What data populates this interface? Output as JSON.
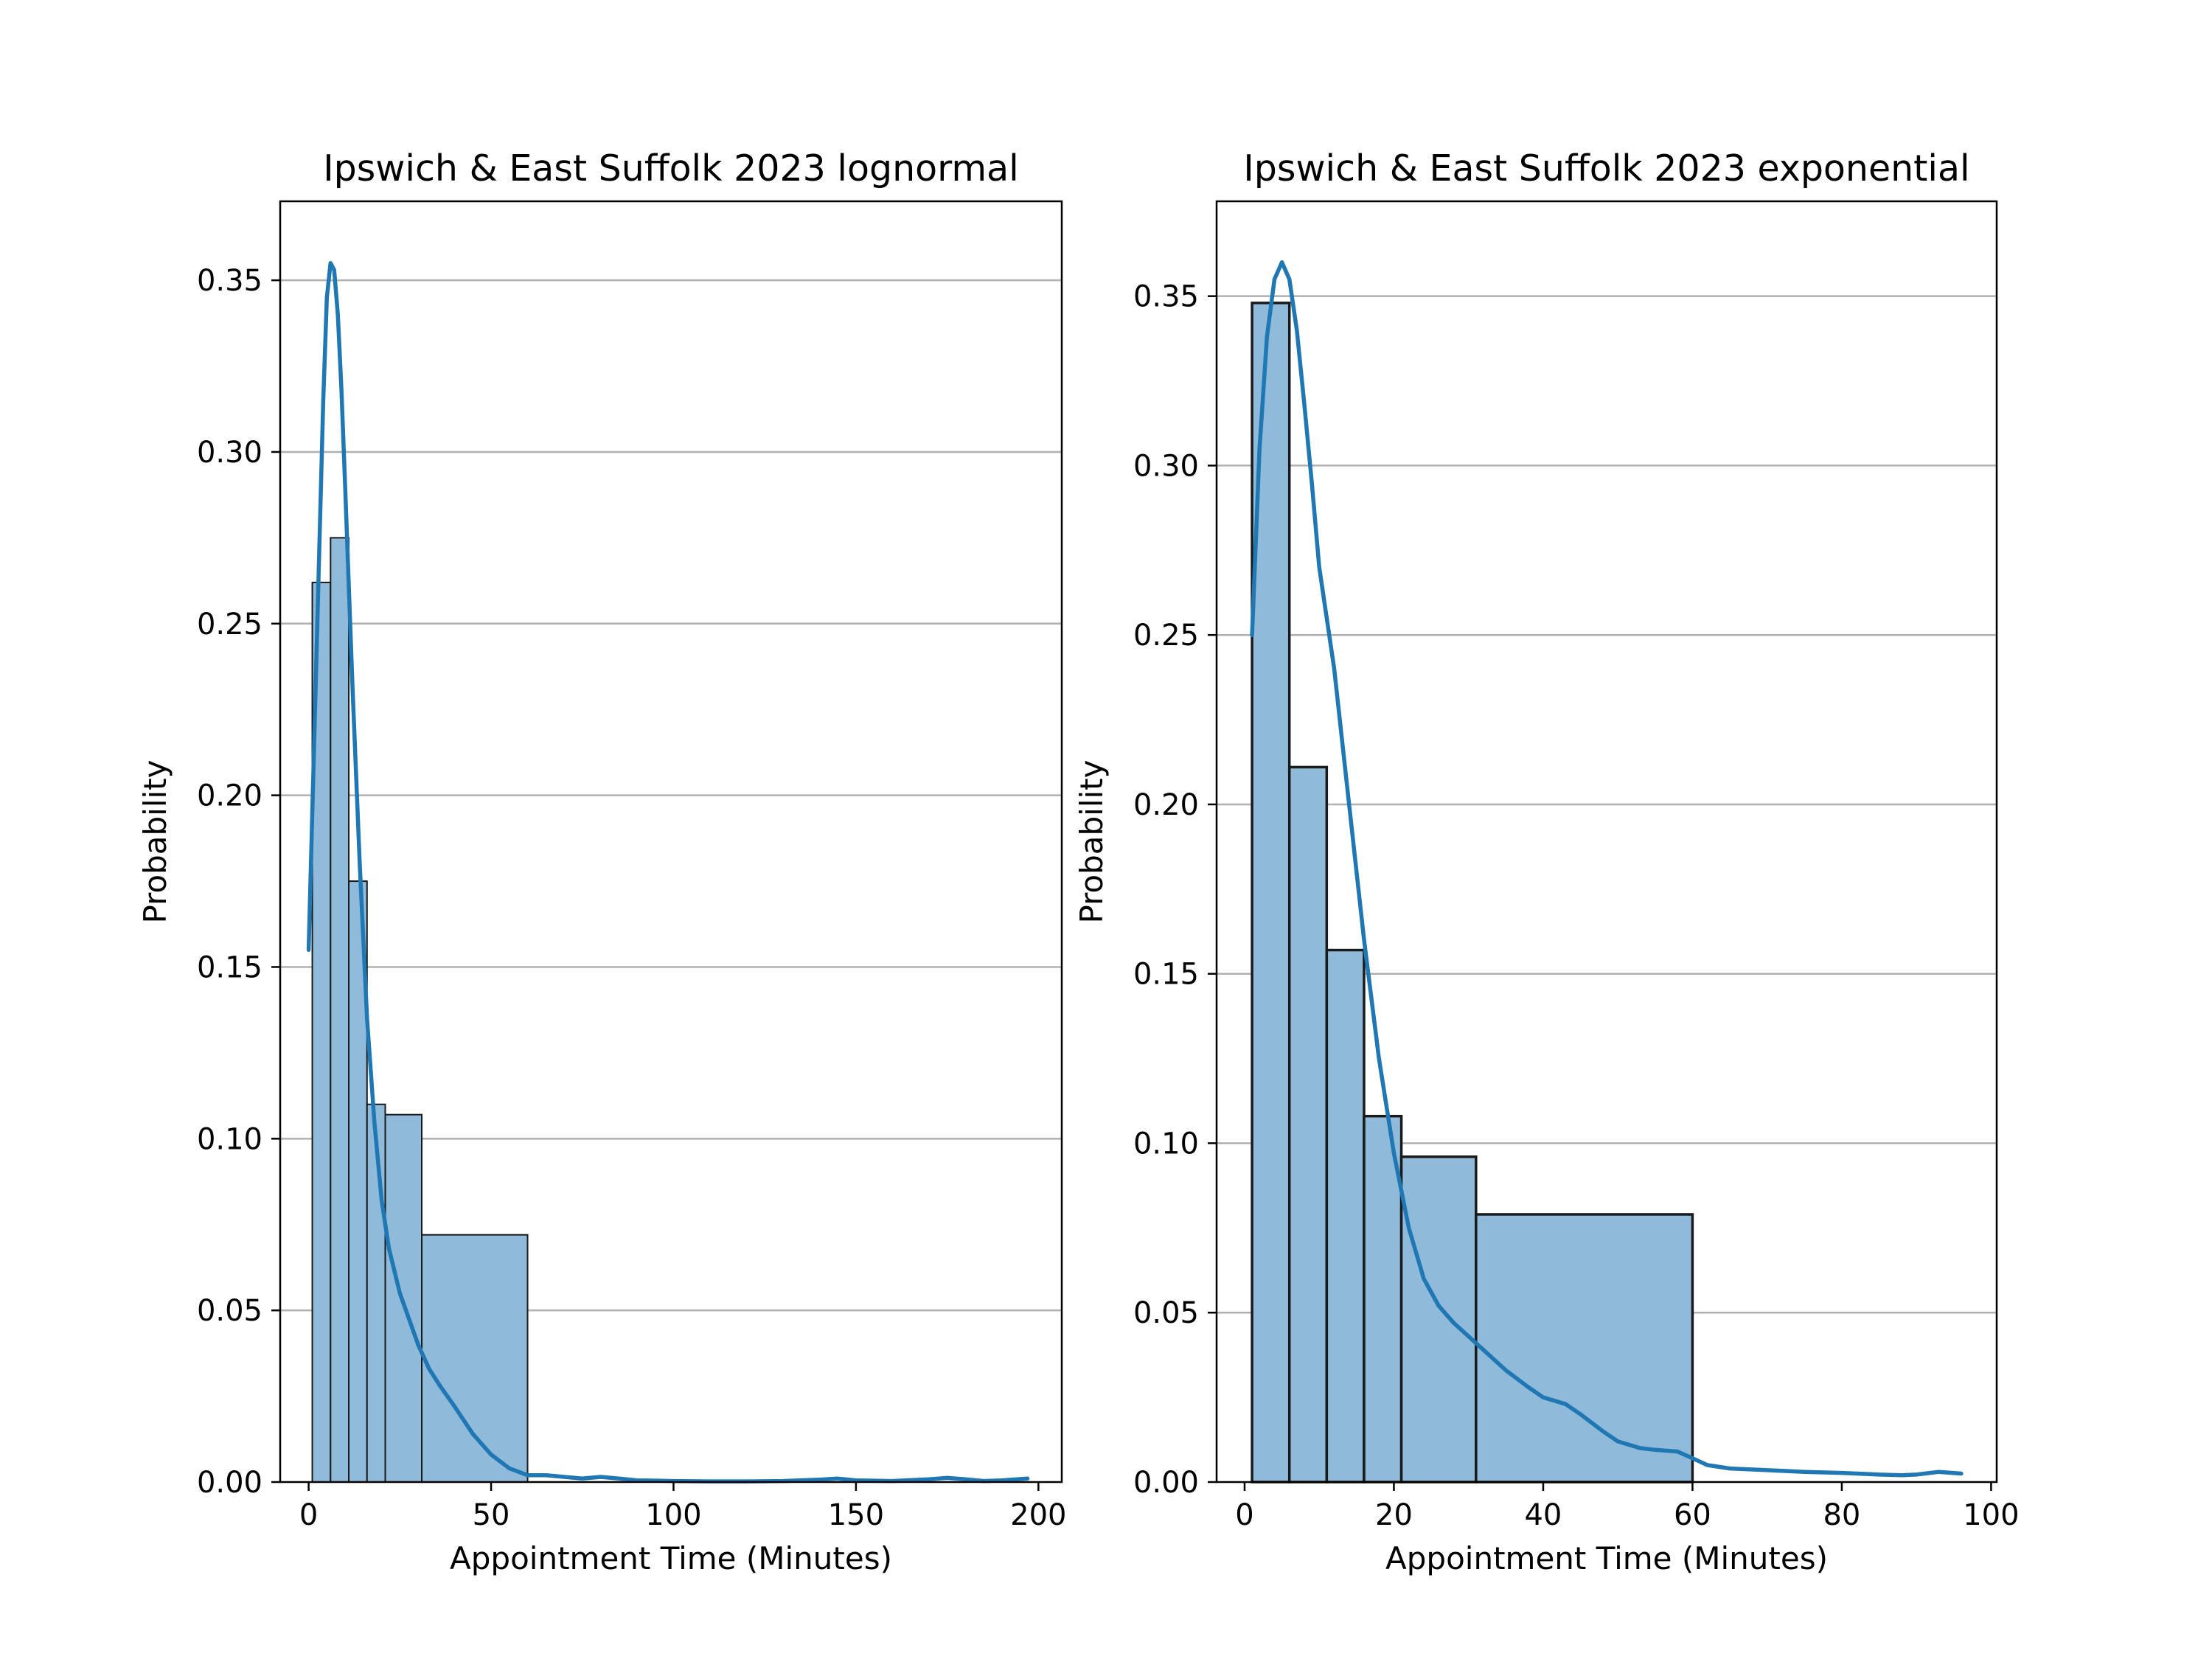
{
  "chart_data": [
    {
      "type": "bar",
      "title": "Ipswich & East Suffolk 2023 lognormal",
      "xlabel": "Appointment Time (Minutes)",
      "ylabel": "Probability",
      "xlim": [
        -7.8,
        206.4
      ],
      "ylim": [
        0,
        0.373
      ],
      "xticks": [
        "0",
        "50",
        "100",
        "150",
        "200"
      ],
      "yticks": [
        "0.00",
        "0.05",
        "0.10",
        "0.15",
        "0.20",
        "0.25",
        "0.30",
        "0.35"
      ],
      "grid": "y",
      "legend": "none",
      "bar_color": "#8fbad9",
      "line_color": "#1f77b4",
      "bins": [
        {
          "x0": 1,
          "x1": 6,
          "value": 0.262
        },
        {
          "x0": 6,
          "x1": 11,
          "value": 0.275
        },
        {
          "x0": 11,
          "x1": 16,
          "value": 0.175
        },
        {
          "x0": 16,
          "x1": 21,
          "value": 0.11
        },
        {
          "x0": 21,
          "x1": 31,
          "value": 0.107
        },
        {
          "x0": 31,
          "x1": 60,
          "value": 0.072
        }
      ],
      "kde": {
        "x": [
          0,
          2,
          4,
          5,
          6,
          7,
          8,
          9,
          10,
          12,
          14,
          16,
          18,
          20,
          22,
          25,
          28,
          30,
          33,
          36,
          40,
          45,
          50,
          55,
          60,
          65,
          70,
          75,
          80,
          85,
          90,
          100,
          110,
          120,
          130,
          140,
          145,
          150,
          160,
          170,
          175,
          180,
          185,
          190,
          197
        ],
        "y": [
          0.155,
          0.235,
          0.315,
          0.345,
          0.355,
          0.353,
          0.34,
          0.318,
          0.29,
          0.232,
          0.18,
          0.135,
          0.105,
          0.082,
          0.068,
          0.055,
          0.046,
          0.04,
          0.033,
          0.028,
          0.022,
          0.014,
          0.008,
          0.004,
          0.002,
          0.002,
          0.0015,
          0.001,
          0.0015,
          0.001,
          0.0005,
          0.0003,
          0.0002,
          0.0002,
          0.0003,
          0.0007,
          0.001,
          0.0005,
          0.0003,
          0.0008,
          0.0012,
          0.0008,
          0.0003,
          0.0005,
          0.001
        ]
      }
    },
    {
      "type": "bar",
      "title": "Ipswich & East Suffolk 2023 exponential",
      "xlabel": "Appointment Time (Minutes)",
      "ylabel": "Probability",
      "xlim": [
        -3.75,
        100.75
      ],
      "ylim": [
        0,
        0.378
      ],
      "xticks": [
        "0",
        "20",
        "40",
        "60",
        "80",
        "100"
      ],
      "yticks": [
        "0.00",
        "0.05",
        "0.10",
        "0.15",
        "0.20",
        "0.25",
        "0.30",
        "0.35"
      ],
      "grid": "y",
      "legend": "none",
      "bar_color": "#8fbad9",
      "line_color": "#1f77b4",
      "bins": [
        {
          "x0": 1,
          "x1": 6,
          "value": 0.348
        },
        {
          "x0": 6,
          "x1": 11,
          "value": 0.211
        },
        {
          "x0": 11,
          "x1": 16,
          "value": 0.157
        },
        {
          "x0": 16,
          "x1": 21,
          "value": 0.108
        },
        {
          "x0": 21,
          "x1": 31,
          "value": 0.096
        },
        {
          "x0": 31,
          "x1": 60,
          "value": 0.079
        }
      ],
      "kde": {
        "x": [
          1,
          2,
          3,
          4,
          5,
          6,
          7,
          8,
          9,
          10,
          12,
          14,
          16,
          18,
          20,
          22,
          24,
          26,
          28,
          30,
          32,
          35,
          38,
          40,
          43,
          45,
          48,
          50,
          53,
          55,
          58,
          60,
          62,
          65,
          70,
          75,
          80,
          85,
          88,
          90,
          93,
          96
        ],
        "y": [
          0.25,
          0.305,
          0.338,
          0.355,
          0.36,
          0.355,
          0.34,
          0.318,
          0.295,
          0.27,
          0.24,
          0.2,
          0.16,
          0.125,
          0.097,
          0.075,
          0.06,
          0.052,
          0.047,
          0.043,
          0.039,
          0.033,
          0.028,
          0.025,
          0.023,
          0.02,
          0.015,
          0.012,
          0.01,
          0.0095,
          0.009,
          0.007,
          0.005,
          0.004,
          0.0035,
          0.003,
          0.0027,
          0.0022,
          0.002,
          0.0022,
          0.003,
          0.0025
        ]
      }
    }
  ]
}
